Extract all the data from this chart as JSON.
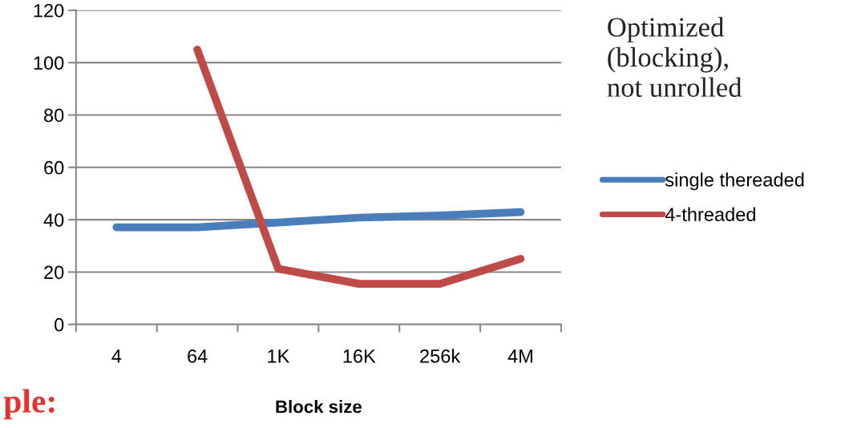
{
  "chart_data": {
    "type": "line",
    "xlabel": "Block size",
    "categories": [
      "4",
      "64",
      "1K",
      "16K",
      "256k",
      "4M"
    ],
    "series": [
      {
        "name": "single thereaded",
        "color": "#4a7ebb",
        "values": [
          37.1,
          37.1,
          38.9,
          40.8,
          41.6,
          42.9
        ]
      },
      {
        "name": "4-threaded",
        "color": "#be4b48",
        "values": [
          null,
          105,
          21.3,
          15.5,
          15.5,
          25.1
        ]
      }
    ],
    "ylim": [
      0,
      120
    ],
    "yticks": [
      0,
      20,
      40,
      60,
      80,
      100,
      120
    ],
    "grid": "y",
    "legend": "right",
    "marker": "none",
    "line_style": "solid",
    "annotations": [
      "Optimized\n(blocking),\nnot unrolled",
      "ple:"
    ]
  }
}
